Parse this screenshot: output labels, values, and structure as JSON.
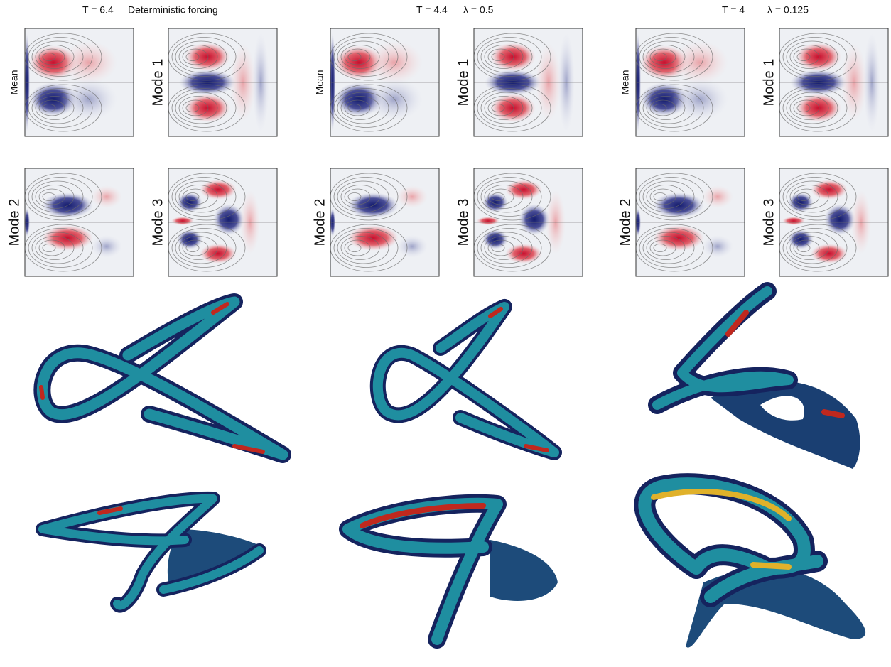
{
  "columns": [
    {
      "header": [
        "T = 6.4",
        "Deterministic forcing"
      ],
      "labels": [
        "Mean",
        "Mode 1",
        "Mode 2",
        "Mode 3"
      ]
    },
    {
      "header": [
        "T = 4.4",
        "λ = 0.5"
      ],
      "labels": [
        "Mean",
        "Mode 1",
        "Mode 2",
        "Mode 3"
      ]
    },
    {
      "header": [
        "T = 4",
        "λ = 0.125"
      ],
      "labels": [
        "Mean",
        "Mode 1",
        "Mode 2",
        "Mode 3"
      ]
    }
  ]
}
